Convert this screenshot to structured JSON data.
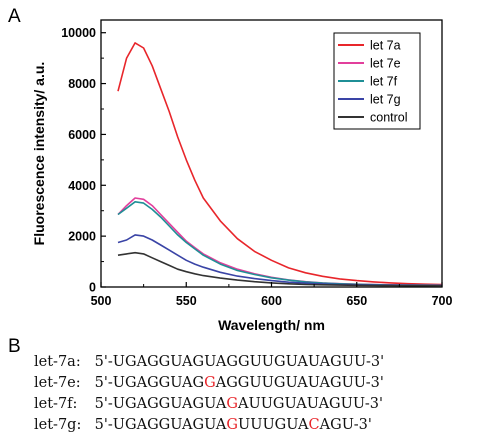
{
  "panel_a_label": "A",
  "panel_b_label": "B",
  "chart_data": {
    "type": "line",
    "title": "",
    "xlabel": "Wavelength/ nm",
    "ylabel": "Fluorescence intensity/ a.u.",
    "xlim": [
      500,
      700
    ],
    "ylim": [
      0,
      10500
    ],
    "xticks": [
      500,
      550,
      600,
      650,
      700
    ],
    "yticks": [
      0,
      2000,
      4000,
      6000,
      8000,
      10000
    ],
    "grid": false,
    "legend_position": "top-right",
    "x": [
      510,
      515,
      520,
      525,
      530,
      535,
      540,
      545,
      550,
      555,
      560,
      570,
      580,
      590,
      600,
      610,
      620,
      630,
      640,
      650,
      660,
      670,
      680,
      690,
      700
    ],
    "series": [
      {
        "name": "let 7a",
        "color": "#e8262b",
        "values": [
          7700,
          9000,
          9600,
          9400,
          8700,
          7800,
          6900,
          5900,
          5000,
          4200,
          3500,
          2600,
          1900,
          1400,
          1050,
          750,
          560,
          420,
          320,
          250,
          200,
          160,
          130,
          110,
          100
        ]
      },
      {
        "name": "let 7e",
        "color": "#e23f9c",
        "values": [
          2850,
          3200,
          3500,
          3450,
          3200,
          2850,
          2500,
          2150,
          1800,
          1550,
          1300,
          950,
          700,
          520,
          380,
          280,
          210,
          160,
          130,
          110,
          95,
          85,
          80,
          75,
          70
        ]
      },
      {
        "name": "let 7f",
        "color": "#1f8f96",
        "values": [
          2850,
          3100,
          3350,
          3300,
          3050,
          2750,
          2400,
          2050,
          1750,
          1500,
          1250,
          900,
          650,
          490,
          360,
          270,
          200,
          155,
          125,
          105,
          90,
          80,
          75,
          70,
          65
        ]
      },
      {
        "name": "let 7g",
        "color": "#3a44a6",
        "values": [
          1750,
          1850,
          2050,
          2000,
          1850,
          1650,
          1450,
          1250,
          1050,
          900,
          780,
          580,
          430,
          330,
          250,
          190,
          150,
          120,
          100,
          85,
          75,
          70,
          65,
          60,
          55
        ]
      },
      {
        "name": "control",
        "color": "#333333",
        "values": [
          1250,
          1300,
          1350,
          1300,
          1150,
          1000,
          850,
          700,
          600,
          520,
          450,
          350,
          270,
          210,
          160,
          125,
          100,
          85,
          75,
          65,
          60,
          55,
          50,
          50,
          45
        ]
      }
    ]
  },
  "sequences": [
    {
      "label": "let-7a:",
      "seq": "5'-UGAGGUAGUAGGUUGUAUAGUU-3'",
      "mut": []
    },
    {
      "label": "let-7e:",
      "seq": "5'-UGAGGUAGGAGGUUGUAUAGUU-3'",
      "mut": [
        11
      ]
    },
    {
      "label": "let-7f:",
      "seq": "5'-UGAGGUAGUAGAUUGUAUAGUU-3'",
      "mut": [
        13
      ]
    },
    {
      "label": "let-7g:",
      "seq": "5'-UGAGGUAGUAGUUUGUACAGU-3'",
      "mut": [
        13,
        20
      ]
    }
  ]
}
